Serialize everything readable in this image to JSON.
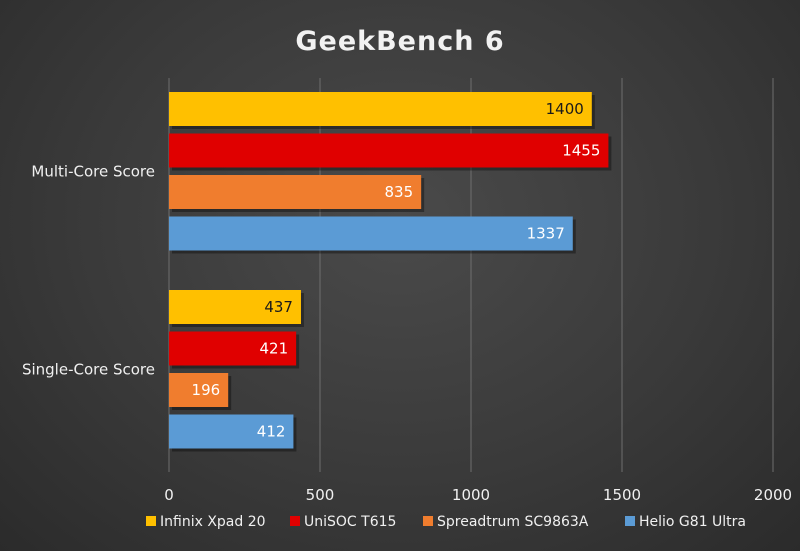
{
  "chart_data": {
    "type": "bar",
    "orientation": "horizontal",
    "title": "GeekBench 6",
    "categories": [
      "Multi-Core Score",
      "Single-Core Score"
    ],
    "series": [
      {
        "name": "Infinix Xpad 20",
        "color": "#ffc000",
        "label_color": "#1a1a1a",
        "values": [
          1400,
          437
        ]
      },
      {
        "name": "UniSOC T615",
        "color": "#e00000",
        "label_color": "#ffffff",
        "values": [
          1455,
          421
        ]
      },
      {
        "name": "Spreadtrum SC9863A",
        "color": "#f07d2e",
        "label_color": "#ffffff",
        "values": [
          835,
          196
        ]
      },
      {
        "name": "Helio G81 Ultra",
        "color": "#5b9bd5",
        "label_color": "#ffffff",
        "values": [
          1337,
          412
        ]
      }
    ],
    "xlim": [
      0,
      2000
    ],
    "x_ticks": [
      0,
      500,
      1000,
      1500,
      2000
    ],
    "grid": true,
    "legend_position": "bottom"
  }
}
